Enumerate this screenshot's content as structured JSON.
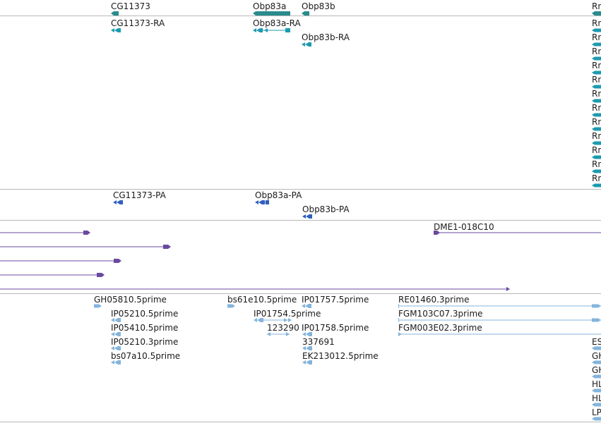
{
  "colors": {
    "gene": "#2a8a8e",
    "transcript": "#1c9bb0",
    "protein": "#2f5fbf",
    "clone": "#6a4a9e",
    "est": "#84b4dc",
    "separator": "#b8b8b8"
  },
  "tracks": {
    "genes": [
      "CG11373",
      "Obp83a",
      "Obp83b",
      "Rn"
    ],
    "transcripts": [
      "CG11373-RA",
      "Obp83a-RA",
      "Obp83b-RA",
      "Rn",
      "Rn",
      "Rn",
      "Rn",
      "Rn",
      "Rn",
      "Rn",
      "Rn",
      "Rn",
      "Rn",
      "Rn",
      "Rn"
    ],
    "proteins": [
      "CG11373-PA",
      "Obp83a-PA",
      "Obp83b-PA"
    ],
    "clones": [
      "DME1-018C10"
    ],
    "ests": [
      "GH05810.5prime",
      "bs61e10.5prime",
      "IP01757.5prime",
      "RE01460.3prime",
      "IP05210.5prime",
      "IP01754.5prime",
      "FGM103C07.3prime",
      "IP05410.5prime",
      "123290",
      "IP01758.5prime",
      "FGM003E02.3prime",
      "IP05210.3prime",
      "337691",
      "ES",
      "bs07a10.5prime",
      "EK213012.5prime",
      "GH",
      "GH",
      "HL",
      "HL",
      "LP"
    ]
  }
}
